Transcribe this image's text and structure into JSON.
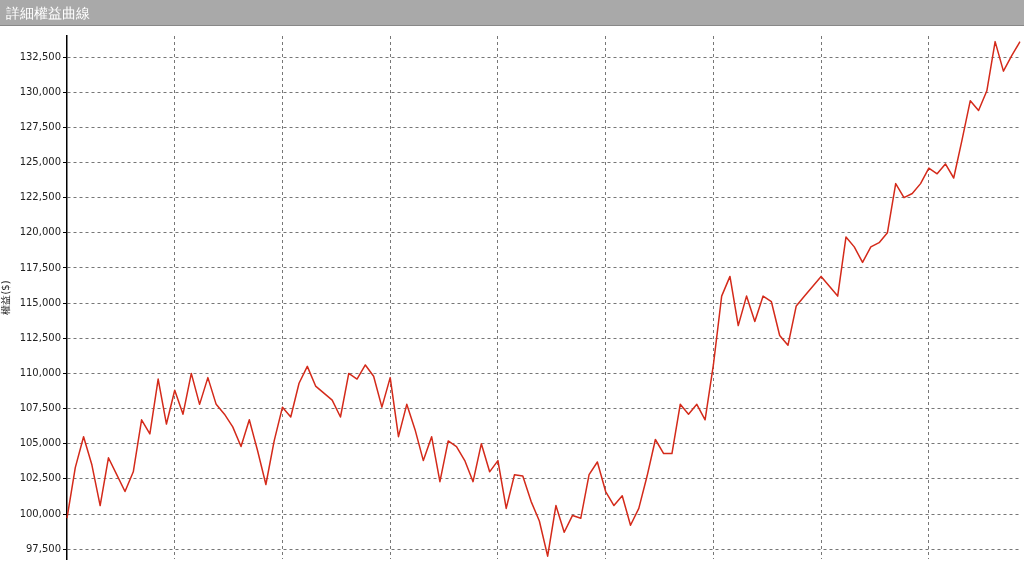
{
  "chart_data": {
    "type": "line",
    "title": "詳細權益曲線",
    "ylabel": "權益($)",
    "categories": [
      null,
      null,
      null,
      null,
      null,
      null,
      null,
      null,
      null,
      null,
      null,
      null,
      null,
      null,
      null,
      null,
      null,
      null,
      null,
      null,
      null,
      null,
      null,
      null,
      null,
      null,
      null,
      null,
      null,
      null,
      null,
      null,
      null,
      null,
      null,
      null,
      null,
      null,
      null,
      null,
      null,
      null,
      null,
      null,
      null,
      null,
      null,
      null,
      null,
      null,
      null,
      null,
      null,
      null,
      null,
      null,
      null,
      null,
      null,
      null,
      null,
      null,
      null,
      null,
      null,
      null,
      null,
      null,
      null,
      null,
      null,
      null,
      null,
      null,
      null,
      null,
      null,
      null,
      null,
      null,
      null,
      null,
      null,
      null,
      null,
      null,
      null,
      null,
      null,
      null,
      null,
      null,
      null,
      null,
      null,
      null,
      null,
      null,
      null,
      null,
      null,
      null,
      null,
      null,
      null,
      null,
      null,
      null,
      null,
      null,
      null,
      null,
      null,
      null,
      null,
      null
    ],
    "series": [
      {
        "color": "#d42a1a",
        "values": [
          99700,
          103300,
          105500,
          103500,
          100600,
          104000,
          102800,
          101600,
          103000,
          106700,
          105700,
          109600,
          106400,
          108800,
          107100,
          110000,
          107800,
          109700,
          107800,
          107100,
          106200,
          104800,
          106700,
          104500,
          102100,
          105200,
          107600,
          106900,
          109300,
          110500,
          109100,
          108600,
          108100,
          106900,
          110000,
          109600,
          110600,
          109800,
          107600,
          109700,
          105500,
          107800,
          106000,
          103800,
          105500,
          102300,
          105200,
          104800,
          103800,
          102300,
          105000,
          103000,
          103800,
          100400,
          102800,
          102700,
          100900,
          99500,
          97000,
          100600,
          98700,
          99900,
          99700,
          102800,
          103700,
          101600,
          100600,
          101300,
          99200,
          100400,
          102700,
          105300,
          104300,
          104300,
          107800,
          107100,
          107800,
          106700,
          110600,
          115500,
          116900,
          113400,
          115500,
          113700,
          115500,
          115100,
          112700,
          112000,
          114800,
          115500,
          116200,
          116900,
          116200,
          115500,
          119700,
          119000,
          117900,
          119000,
          119300,
          120000,
          123500,
          122500,
          122800,
          123500,
          124600,
          124200,
          124900,
          123900,
          126600,
          129400,
          128700,
          130100,
          133600,
          131500,
          132600,
          133600
        ]
      }
    ],
    "ylim": [
      96800,
      134000
    ],
    "yticks": [
      {
        "value": 97500,
        "label": "97,500"
      },
      {
        "value": 100000,
        "label": "100,000"
      },
      {
        "value": 102500,
        "label": "102,500"
      },
      {
        "value": 105000,
        "label": "105,000"
      },
      {
        "value": 107500,
        "label": "107,500"
      },
      {
        "value": 110000,
        "label": "110,000"
      },
      {
        "value": 112500,
        "label": "112,500"
      },
      {
        "value": 115000,
        "label": "115,000"
      },
      {
        "value": 117500,
        "label": "117,500"
      },
      {
        "value": 120000,
        "label": "120,000"
      },
      {
        "value": 122500,
        "label": "122,500"
      },
      {
        "value": 125000,
        "label": "125,000"
      },
      {
        "value": 127500,
        "label": "127,500"
      },
      {
        "value": 130000,
        "label": "130,000"
      },
      {
        "value": 132500,
        "label": "132,500"
      }
    ],
    "tick_labels": "y",
    "grid": true,
    "marker": "none",
    "line_style": "solid",
    "legend": false
  }
}
